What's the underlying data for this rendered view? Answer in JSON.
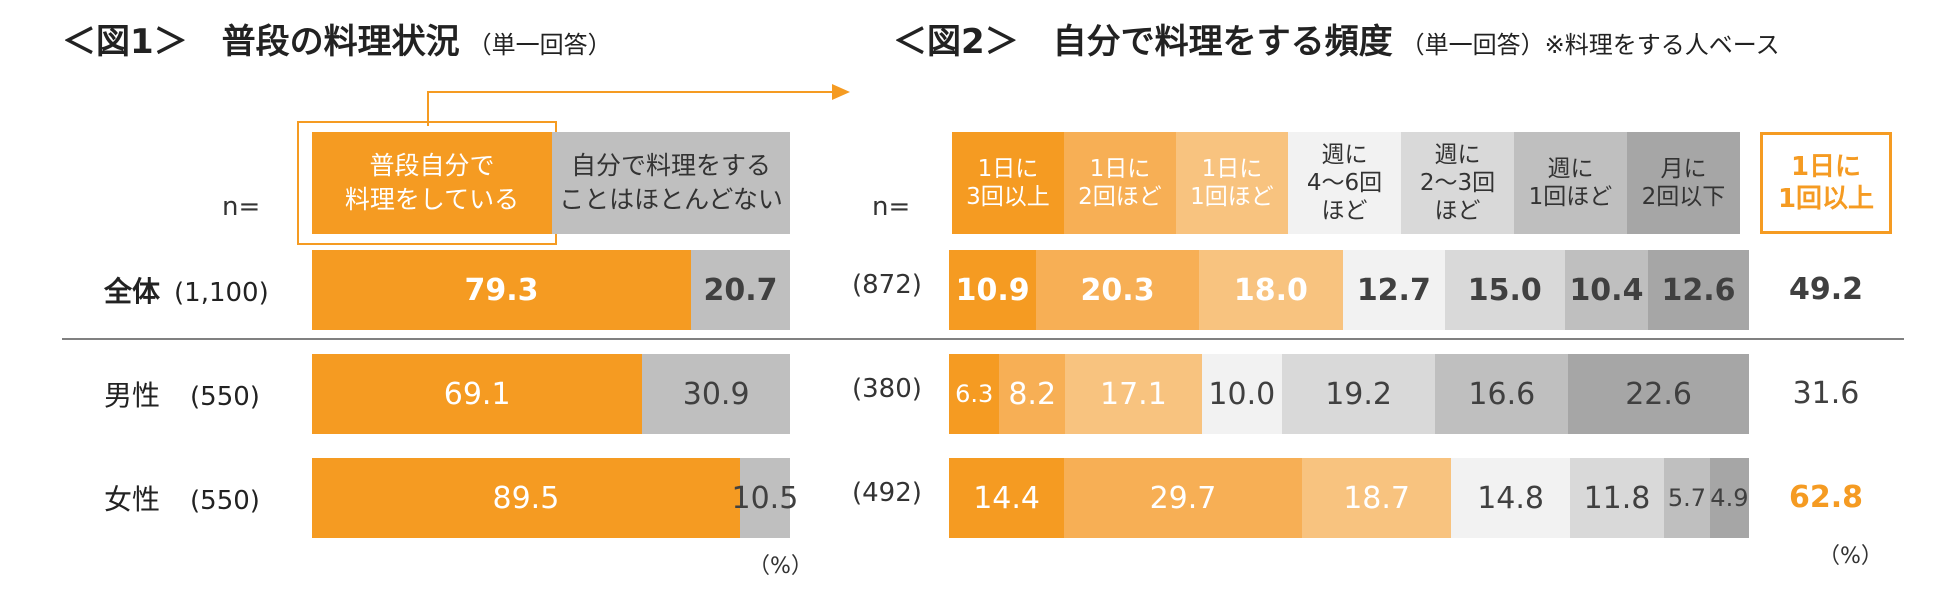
{
  "fig1": {
    "title": "＜図1＞　普段の料理状況",
    "subtitle": "（単一回答）",
    "n_label": "n=",
    "headers": [
      "普段自分で\n料理をしている",
      "自分で料理をする\nことはほとんどない"
    ],
    "header_colors": [
      "#F59B22",
      "#BFBFBF"
    ],
    "pct_label": "（%）"
  },
  "fig2": {
    "title": "＜図2＞　自分で料理をする頻度",
    "subtitle": "（単一回答）※料理をする人ベース",
    "n_label": "n=",
    "headers": [
      "1日に\n3回以上",
      "1日に\n2回ほど",
      "1日に\n1回ほど",
      "週に\n4〜6回\nほど",
      "週に\n2〜3回\nほど",
      "週に\n1回ほど",
      "月に\n2回以下"
    ],
    "header_colors": [
      "#F59B22",
      "#F7AF55",
      "#F8C37F",
      "#F2F2F2",
      "#D9D9D9",
      "#BFBFBF",
      "#A6A6A6"
    ],
    "header_text_colors": [
      "#ffffff",
      "#ffffff",
      "#ffffff",
      "#333333",
      "#333333",
      "#333333",
      "#333333"
    ],
    "side_header": "1日に\n1回以上",
    "pct_label": "（%）"
  },
  "rows": [
    {
      "label": "全体",
      "fig1_n": "(1,100)",
      "fig2_n": "(872)",
      "bold": true
    },
    {
      "label": "男性",
      "fig1_n": "(550)",
      "fig2_n": "(380)",
      "bold": false
    },
    {
      "label": "女性",
      "fig1_n": "(550)",
      "fig2_n": "(492)",
      "bold": false
    }
  ],
  "chart_data": [
    {
      "type": "bar",
      "stacked": true,
      "orientation": "horizontal",
      "title": "＜図1＞　普段の料理状況",
      "categories": [
        "全体",
        "男性",
        "女性"
      ],
      "series": [
        {
          "name": "普段自分で料理をしている",
          "values": [
            79.3,
            69.1,
            89.5
          ]
        },
        {
          "name": "自分で料理をすることはほとんどない",
          "values": [
            20.7,
            30.9,
            10.5
          ]
        }
      ]
    },
    {
      "type": "bar",
      "stacked": true,
      "orientation": "horizontal",
      "title": "＜図2＞　自分で料理をする頻度",
      "categories": [
        "全体",
        "男性",
        "女性"
      ],
      "series": [
        {
          "name": "1日に3回以上",
          "values": [
            10.9,
            6.3,
            14.4
          ]
        },
        {
          "name": "1日に2回ほど",
          "values": [
            20.3,
            8.2,
            29.7
          ]
        },
        {
          "name": "1日に1回ほど",
          "values": [
            18.0,
            17.1,
            18.7
          ]
        },
        {
          "name": "週に4〜6回ほど",
          "values": [
            12.7,
            10.0,
            14.8
          ]
        },
        {
          "name": "週に2〜3回ほど",
          "values": [
            15.0,
            19.2,
            11.8
          ]
        },
        {
          "name": "週に1回ほど",
          "values": [
            10.4,
            16.6,
            5.7
          ]
        },
        {
          "name": "月に2回以下",
          "values": [
            12.6,
            22.6,
            4.9
          ]
        }
      ],
      "side_totals": {
        "name": "1日に1回以上",
        "values": [
          49.2,
          31.6,
          62.8
        ]
      }
    }
  ]
}
